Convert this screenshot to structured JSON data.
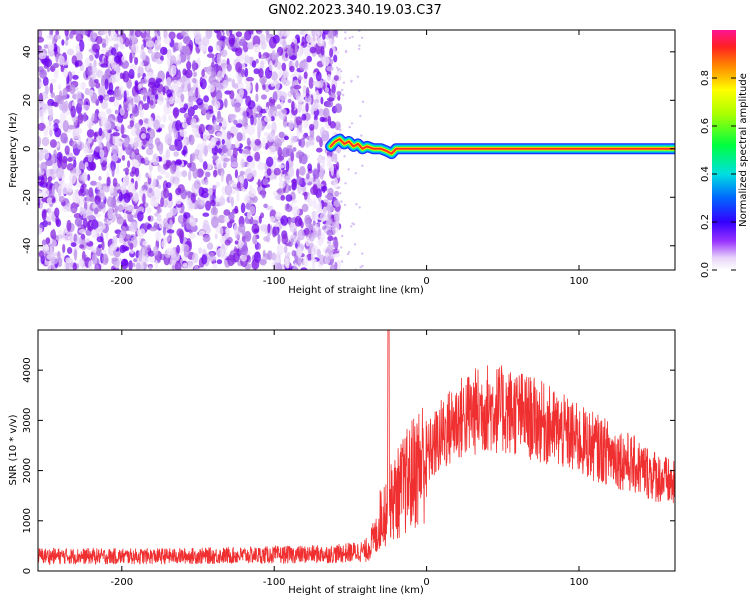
{
  "title": "GN02.2023.340.19.03.C37",
  "colors": {
    "snr_line": "#f03030",
    "background_noise": "#8a2be2",
    "axis": "#000000"
  },
  "chart_data": [
    {
      "type": "heatmap",
      "panel": "spectrogram",
      "xlabel": "Height of straight line (km)",
      "ylabel": "Frequency (Hz)",
      "xlim": [
        -255,
        163
      ],
      "ylim": [
        -50,
        49
      ],
      "xticks": [
        -200,
        -100,
        0,
        100
      ],
      "yticks": [
        -40,
        -20,
        0,
        20,
        40
      ],
      "noise_region_x": [
        -255,
        -60
      ],
      "signal_track": [
        [
          -63,
          1
        ],
        [
          -60,
          3
        ],
        [
          -57,
          4
        ],
        [
          -54,
          2
        ],
        [
          -51,
          3
        ],
        [
          -48,
          1
        ],
        [
          -45,
          2
        ],
        [
          -42,
          0
        ],
        [
          -39,
          1
        ],
        [
          -35,
          0
        ],
        [
          -30,
          0
        ],
        [
          -26,
          -1
        ],
        [
          -23,
          -2
        ],
        [
          -20,
          0
        ],
        [
          -15,
          0
        ],
        [
          0,
          0
        ],
        [
          50,
          0
        ],
        [
          100,
          0
        ],
        [
          163,
          0
        ]
      ],
      "colorbar": {
        "label": "Normalized spectral amplitude",
        "ticks": [
          "0.0",
          "0.2",
          "0.4",
          "0.6",
          "0.8"
        ],
        "range": [
          0,
          1
        ]
      }
    },
    {
      "type": "line",
      "panel": "snr",
      "xlabel": "Height of straight line (km)",
      "ylabel": "SNR (10 * v/v)",
      "xlim": [
        -255,
        163
      ],
      "ylim": [
        0,
        4800
      ],
      "xticks": [
        -200,
        -100,
        0,
        100
      ],
      "yticks": [
        0,
        1000,
        2000,
        3000,
        4000
      ],
      "series": [
        {
          "envelope_x": [
            -255,
            -200,
            -150,
            -100,
            -60,
            -40,
            -33,
            -30,
            -25,
            -20,
            -10,
            0,
            10,
            20,
            30,
            40,
            60,
            80,
            100,
            120,
            140,
            163
          ],
          "envelope_y": [
            300,
            290,
            300,
            320,
            340,
            400,
            700,
            1100,
            1300,
            1500,
            1900,
            2300,
            2700,
            3000,
            3150,
            3250,
            3150,
            2900,
            2600,
            2350,
            2050,
            1700
          ],
          "spike": {
            "x": -25,
            "y": 4800
          }
        }
      ]
    }
  ]
}
